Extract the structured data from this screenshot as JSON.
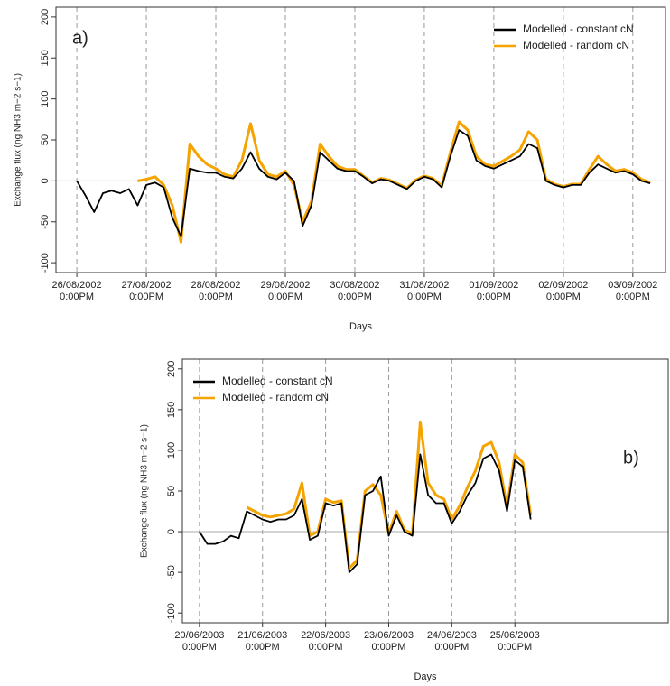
{
  "chart_data": [
    {
      "type": "line",
      "panel_label": "a)",
      "xlabel": "Days",
      "ylabel": "Exchange flux (ng NH3 m−2 s−1)",
      "legend": "top-right",
      "reference_line": 0,
      "xlim": [
        -0.3,
        8.47
      ],
      "ylim": [
        -112,
        212
      ],
      "xticks": [
        {
          "value": 0,
          "label": "26/08/2002\n0:00PM"
        },
        {
          "value": 1,
          "label": "27/08/2002\n0:00PM"
        },
        {
          "value": 2,
          "label": "28/08/2002\n0:00PM"
        },
        {
          "value": 3,
          "label": "29/08/2002\n0:00PM"
        },
        {
          "value": 4,
          "label": "30/08/2002\n0:00PM"
        },
        {
          "value": 5,
          "label": "31/08/2002\n0:00PM"
        },
        {
          "value": 6,
          "label": "01/09/2002\n0:00PM"
        },
        {
          "value": 7,
          "label": "02/09/2002\n0:00PM"
        },
        {
          "value": 8,
          "label": "03/09/2002\n0:00PM"
        }
      ],
      "yticks": [
        -100,
        -50,
        0,
        50,
        100,
        150,
        200
      ],
      "x": [
        0,
        0.125,
        0.25,
        0.375,
        0.5,
        0.625,
        0.75,
        0.875,
        1,
        1.125,
        1.25,
        1.375,
        1.5,
        1.625,
        1.75,
        1.875,
        2,
        2.125,
        2.25,
        2.375,
        2.5,
        2.625,
        2.75,
        2.875,
        3,
        3.125,
        3.25,
        3.375,
        3.5,
        3.625,
        3.75,
        3.875,
        4,
        4.125,
        4.25,
        4.375,
        4.5,
        4.625,
        4.75,
        4.875,
        5,
        5.125,
        5.25,
        5.375,
        5.5,
        5.625,
        5.75,
        5.875,
        6,
        6.125,
        6.25,
        6.375,
        6.5,
        6.625,
        6.75,
        6.875,
        7,
        7.125,
        7.25,
        7.375,
        7.5,
        7.625,
        7.75,
        7.875,
        8,
        8.125,
        8.25
      ],
      "series": [
        {
          "name": "Modelled - random cN",
          "color": "#f5a300",
          "values": [
            null,
            null,
            null,
            null,
            null,
            null,
            null,
            0,
            2,
            5,
            -5,
            -30,
            -75,
            45,
            30,
            20,
            15,
            8,
            5,
            25,
            70,
            25,
            8,
            5,
            12,
            -5,
            -50,
            -25,
            45,
            30,
            18,
            14,
            14,
            6,
            -2,
            3,
            1,
            -4,
            -9,
            1,
            6,
            3,
            -6,
            35,
            72,
            62,
            30,
            20,
            18,
            24,
            30,
            38,
            60,
            50,
            2,
            -4,
            -7,
            -4,
            -4,
            14,
            30,
            20,
            12,
            14,
            10,
            2,
            -2
          ]
        },
        {
          "name": "Modelled - constant cN",
          "color": "#000000",
          "values": [
            0,
            -18,
            -38,
            -15,
            -12,
            -15,
            -10,
            -30,
            -5,
            -2,
            -8,
            -45,
            -68,
            15,
            12,
            10,
            10,
            5,
            3,
            15,
            35,
            15,
            5,
            2,
            10,
            0,
            -55,
            -30,
            35,
            25,
            15,
            12,
            12,
            5,
            -3,
            2,
            0,
            -5,
            -10,
            0,
            5,
            2,
            -8,
            30,
            62,
            55,
            25,
            18,
            15,
            20,
            25,
            30,
            45,
            40,
            0,
            -5,
            -8,
            -5,
            -5,
            10,
            20,
            15,
            10,
            12,
            8,
            0,
            -3
          ]
        }
      ]
    },
    {
      "type": "line",
      "panel_label": "b)",
      "xlabel": "Days",
      "ylabel": "Exchange flux (ng NH3 m−2 s−1)",
      "legend": "top-left",
      "reference_line": 0,
      "xlim": [
        -0.27,
        7.43
      ],
      "ylim": [
        -112,
        212
      ],
      "xticks": [
        {
          "value": 0,
          "label": "20/06/2003\n0:00PM"
        },
        {
          "value": 1,
          "label": "21/06/2003\n0:00PM"
        },
        {
          "value": 2,
          "label": "22/06/2003\n0:00PM"
        },
        {
          "value": 3,
          "label": "23/06/2003\n0:00PM"
        },
        {
          "value": 4,
          "label": "24/06/2003\n0:00PM"
        },
        {
          "value": 5,
          "label": "25/06/2003\n0:00PM"
        }
      ],
      "yticks": [
        -100,
        -50,
        0,
        50,
        100,
        150,
        200
      ],
      "x": [
        0,
        0.125,
        0.25,
        0.375,
        0.5,
        0.625,
        0.75,
        0.875,
        1,
        1.125,
        1.25,
        1.375,
        1.5,
        1.625,
        1.75,
        1.875,
        2,
        2.125,
        2.25,
        2.375,
        2.5,
        2.625,
        2.75,
        2.875,
        3,
        3.125,
        3.25,
        3.375,
        3.5,
        3.625,
        3.75,
        3.875,
        4,
        4.125,
        4.25,
        4.375,
        4.5,
        4.625,
        4.75,
        4.875,
        5,
        5.125,
        5.25
      ],
      "series": [
        {
          "name": "Modelled - random cN",
          "color": "#f5a300",
          "values": [
            null,
            null,
            null,
            null,
            null,
            null,
            30,
            25,
            20,
            18,
            20,
            22,
            28,
            60,
            -5,
            0,
            40,
            36,
            38,
            -45,
            -35,
            50,
            58,
            45,
            -2,
            25,
            2,
            -2,
            135,
            60,
            45,
            40,
            15,
            32,
            55,
            75,
            105,
            110,
            85,
            30,
            95,
            85,
            20
          ]
        },
        {
          "name": "Modelled - constant cN",
          "color": "#000000",
          "values": [
            0,
            -15,
            -15,
            -12,
            -5,
            -8,
            25,
            20,
            15,
            12,
            15,
            15,
            20,
            40,
            -10,
            -5,
            35,
            32,
            35,
            -50,
            -40,
            45,
            50,
            68,
            -5,
            20,
            0,
            -5,
            95,
            45,
            35,
            35,
            10,
            25,
            45,
            60,
            90,
            95,
            75,
            25,
            88,
            80,
            15
          ]
        }
      ]
    }
  ]
}
